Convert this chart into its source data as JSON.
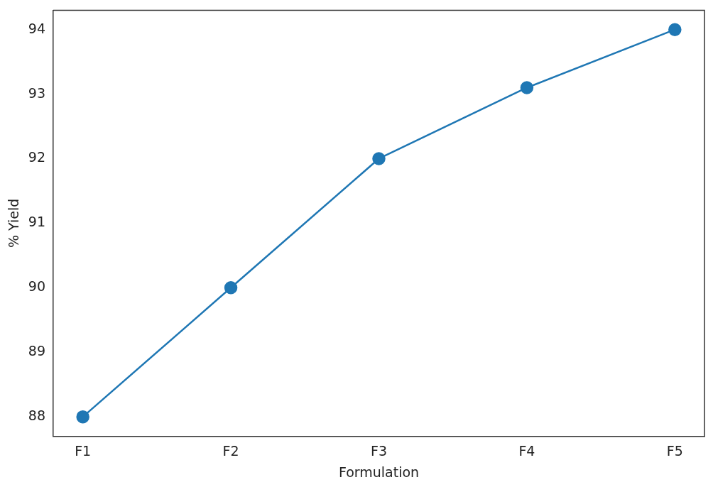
{
  "chart_data": {
    "type": "line",
    "xlabel": "Formulation",
    "ylabel": "% Yield",
    "categories": [
      "F1",
      "F2",
      "F3",
      "F4",
      "F5"
    ],
    "series": [
      {
        "color": "#1f77b4",
        "values": [
          88,
          90,
          92,
          93.1,
          94
        ]
      }
    ],
    "ylim": [
      87.7,
      94.3
    ],
    "yticks": [
      88,
      89,
      90,
      91,
      92,
      93,
      94
    ],
    "grid": false,
    "legend": false,
    "marker": "circle",
    "line_style": "solid"
  }
}
